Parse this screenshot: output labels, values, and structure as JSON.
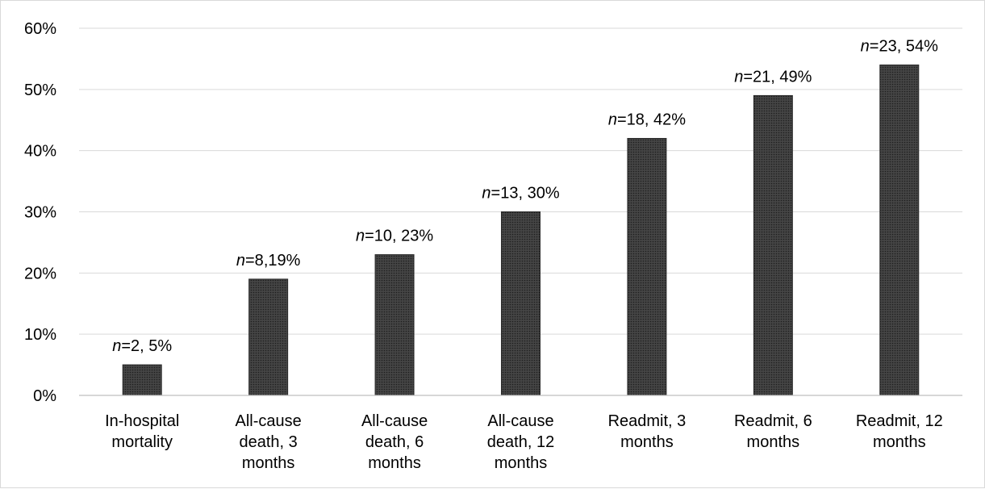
{
  "chart_data": {
    "type": "bar",
    "title": "",
    "xlabel": "",
    "ylabel": "",
    "ylim": [
      0,
      60
    ],
    "y_ticks": [
      0,
      10,
      20,
      30,
      40,
      50,
      60
    ],
    "y_tick_format": "percent",
    "grid": true,
    "legend": "none",
    "bar_color": "#3a3a3a",
    "categories": [
      [
        "In-hospital",
        "mortality"
      ],
      [
        "All-cause",
        "death, 3",
        "months"
      ],
      [
        "All-cause",
        "death, 6",
        "months"
      ],
      [
        "All-cause",
        "death, 12",
        "months"
      ],
      [
        "Readmit, 3",
        "months"
      ],
      [
        "Readmit, 6",
        "months"
      ],
      [
        "Readmit, 12",
        "months"
      ]
    ],
    "values": [
      5,
      19,
      23,
      30,
      42,
      49,
      54
    ],
    "data_labels": [
      {
        "n": "2",
        "rest": ", 5%"
      },
      {
        "n": "8",
        "rest": ",19%"
      },
      {
        "n": "10",
        "rest": ", 23%"
      },
      {
        "n": "13",
        "rest": ", 30%"
      },
      {
        "n": "18",
        "rest": ", 42%"
      },
      {
        "n": "21",
        "rest": ", 49%"
      },
      {
        "n": "23",
        "rest": ", 54%"
      }
    ]
  }
}
